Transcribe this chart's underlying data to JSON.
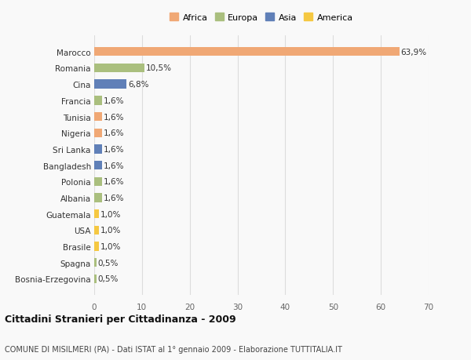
{
  "countries": [
    "Marocco",
    "Romania",
    "Cina",
    "Francia",
    "Tunisia",
    "Nigeria",
    "Sri Lanka",
    "Bangladesh",
    "Polonia",
    "Albania",
    "Guatemala",
    "USA",
    "Brasile",
    "Spagna",
    "Bosnia-Erzegovina"
  ],
  "values": [
    63.9,
    10.5,
    6.8,
    1.6,
    1.6,
    1.6,
    1.6,
    1.6,
    1.6,
    1.6,
    1.0,
    1.0,
    1.0,
    0.5,
    0.5
  ],
  "labels": [
    "63,9%",
    "10,5%",
    "6,8%",
    "1,6%",
    "1,6%",
    "1,6%",
    "1,6%",
    "1,6%",
    "1,6%",
    "1,6%",
    "1,0%",
    "1,0%",
    "1,0%",
    "0,5%",
    "0,5%"
  ],
  "colors": [
    "#F0A875",
    "#AABF7E",
    "#6080B8",
    "#AABF7E",
    "#F0A875",
    "#F0A875",
    "#6080B8",
    "#6080B8",
    "#AABF7E",
    "#AABF7E",
    "#F5C842",
    "#F5C842",
    "#F5C842",
    "#AABF7E",
    "#AABF7E"
  ],
  "legend_labels": [
    "Africa",
    "Europa",
    "Asia",
    "America"
  ],
  "legend_colors": [
    "#F0A875",
    "#AABF7E",
    "#6080B8",
    "#F5C842"
  ],
  "title": "Cittadini Stranieri per Cittadinanza - 2009",
  "subtitle": "COMUNE DI MISILMERI (PA) - Dati ISTAT al 1° gennaio 2009 - Elaborazione TUTTITALIA.IT",
  "xlim": [
    0,
    70
  ],
  "xticks": [
    0,
    10,
    20,
    30,
    40,
    50,
    60,
    70
  ],
  "background_color": "#f9f9f9",
  "grid_color": "#dddddd",
  "bar_height": 0.55,
  "label_fontsize": 7.5,
  "ytick_fontsize": 7.5,
  "xtick_fontsize": 7.5,
  "legend_fontsize": 8,
  "title_fontsize": 9,
  "subtitle_fontsize": 7
}
